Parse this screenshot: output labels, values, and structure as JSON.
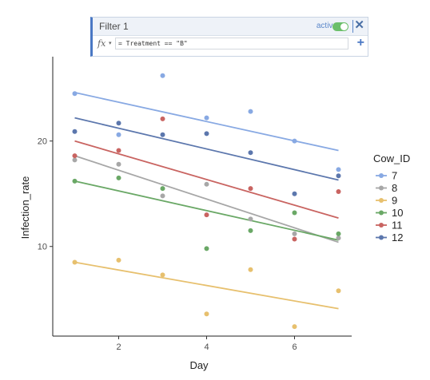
{
  "filter": {
    "title": "Filter 1",
    "active_label": "active",
    "active": true,
    "fx_symbol": "fx",
    "expression": "= Treatment == \"B\"",
    "add_symbol": "+",
    "close_symbol": "✕",
    "accent_color": "#4a78c4"
  },
  "chart_data": {
    "type": "scatter",
    "xlabel": "Day",
    "ylabel": "Infection_rate",
    "xlim": [
      0.5,
      7.3
    ],
    "ylim": [
      1.5,
      28
    ],
    "x_ticks": [
      2,
      4,
      6
    ],
    "y_ticks": [
      10,
      20
    ],
    "grid": false,
    "legend_title": "Cow_ID",
    "legend_position": "right",
    "trendlines": true,
    "series": [
      {
        "name": "7",
        "color": "#88a9e3",
        "points": [
          [
            1,
            24.5
          ],
          [
            2,
            20.6
          ],
          [
            3,
            26.2
          ],
          [
            4,
            22.2
          ],
          [
            5,
            22.8
          ],
          [
            6,
            20.0
          ],
          [
            7,
            17.3
          ]
        ],
        "fit": [
          [
            1,
            24.6
          ],
          [
            7,
            19.1
          ]
        ]
      },
      {
        "name": "8",
        "color": "#a7a7a7",
        "points": [
          [
            1,
            18.2
          ],
          [
            2,
            17.8
          ],
          [
            3,
            14.8
          ],
          [
            4,
            15.9
          ],
          [
            5,
            12.6
          ],
          [
            6,
            11.2
          ],
          [
            7,
            10.8
          ]
        ],
        "fit": [
          [
            1,
            18.6
          ],
          [
            7,
            10.4
          ]
        ]
      },
      {
        "name": "9",
        "color": "#e7c06e",
        "points": [
          [
            1,
            8.5
          ],
          [
            2,
            8.7
          ],
          [
            3,
            7.3
          ],
          [
            4,
            3.6
          ],
          [
            5,
            7.8
          ],
          [
            6,
            2.4
          ],
          [
            7,
            5.8
          ]
        ],
        "fit": [
          [
            1,
            8.5
          ],
          [
            7,
            4.1
          ]
        ]
      },
      {
        "name": "10",
        "color": "#6aa866",
        "points": [
          [
            1,
            16.2
          ],
          [
            2,
            16.5
          ],
          [
            3,
            15.5
          ],
          [
            4,
            9.8
          ],
          [
            5,
            11.5
          ],
          [
            6,
            13.2
          ],
          [
            7,
            11.2
          ]
        ],
        "fit": [
          [
            1,
            16.2
          ],
          [
            7,
            10.6
          ]
        ]
      },
      {
        "name": "11",
        "color": "#c96461",
        "points": [
          [
            1,
            18.6
          ],
          [
            2,
            19.1
          ],
          [
            3,
            22.1
          ],
          [
            4,
            13.0
          ],
          [
            5,
            15.5
          ],
          [
            6,
            10.7
          ],
          [
            7,
            15.2
          ]
        ],
        "fit": [
          [
            1,
            20.0
          ],
          [
            7,
            12.7
          ]
        ]
      },
      {
        "name": "12",
        "color": "#5c77ad",
        "points": [
          [
            1,
            20.9
          ],
          [
            2,
            21.7
          ],
          [
            3,
            20.6
          ],
          [
            4,
            20.7
          ],
          [
            5,
            18.9
          ],
          [
            6,
            15.0
          ],
          [
            7,
            16.7
          ]
        ],
        "fit": [
          [
            1,
            22.2
          ],
          [
            7,
            16.3
          ]
        ]
      }
    ]
  }
}
